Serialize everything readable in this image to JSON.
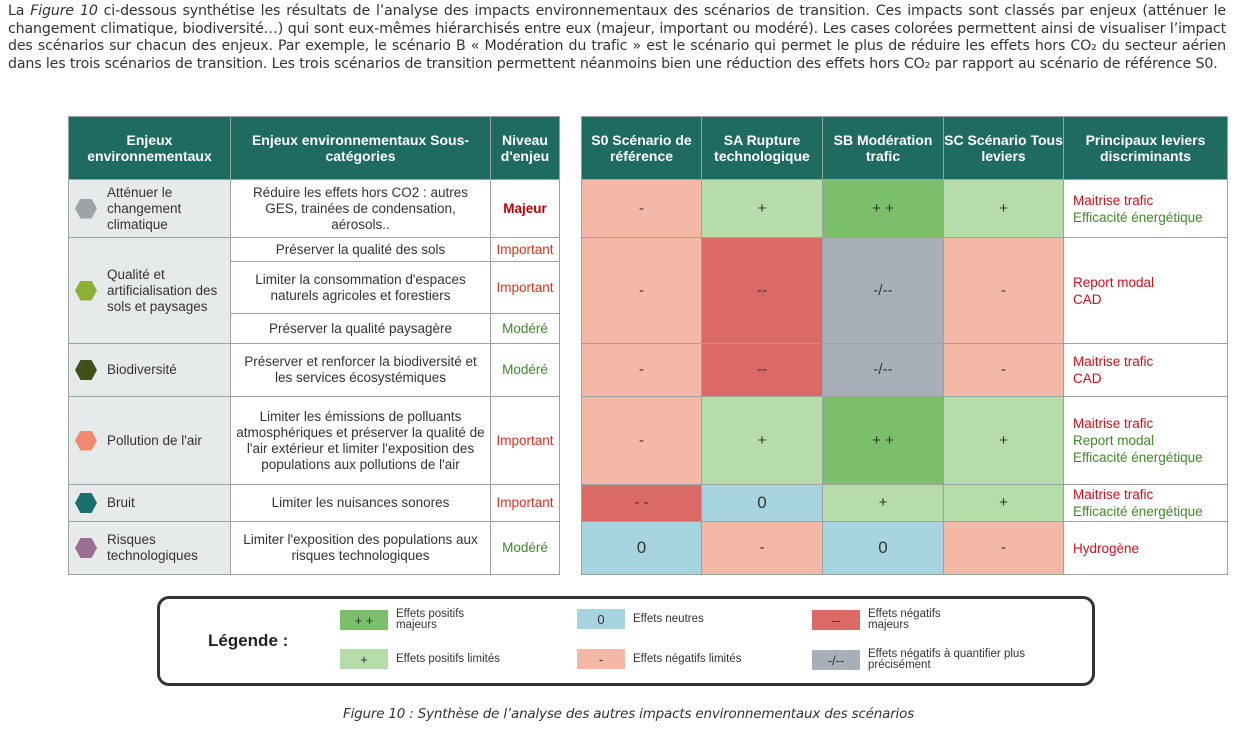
{
  "intro": {
    "before_ref": "La ",
    "ref": "Figure 10",
    "after_ref": " ci-dessous synthétise les résultats de l’analyse des impacts environnementaux des scénarios de transition. Ces impacts sont classés par enjeux (atténuer le changement climatique, biodiversité…) qui sont eux-mêmes hiérarchisés entre eux (majeur, important ou modéré). Les cases colorées permettent ainsi de visualiser l’impact des scénarios sur chacun des enjeux. Par exemple, le scénario B « Modération du trafic » est le scénario qui permet le plus de réduire les effets hors CO₂ du secteur aérien dans les trois scénarios de transition. Les trois scénarios de transition permettent néanmoins bien une réduction des effets hors CO₂ par rapport au scénario de référence S0."
  },
  "headers": {
    "enjeux": "Enjeux environnementaux",
    "sous": "Enjeux environnementaux Sous-catégories",
    "niveau": "Niveau d'enjeu",
    "s0": "S0 Scénario de référence",
    "sa": "SA Rupture technologique",
    "sb": "SB Modération trafic",
    "sc": "SC Scénario Tous leviers",
    "leviers": "Principaux leviers discriminants"
  },
  "enjeux": [
    {
      "label": "Atténuer le changement climatique",
      "color": "#9ea3a8"
    },
    {
      "label": "Qualité et artificialisation des sols et paysages",
      "color": "#8cb033"
    },
    {
      "label": "Biodiversité",
      "color": "#3f5019"
    },
    {
      "label": "Pollution de l'air",
      "color": "#f08a6e"
    },
    {
      "label": "Bruit",
      "color": "#17706e"
    },
    {
      "label": "Risques technologiques",
      "color": "#9a6f93"
    }
  ],
  "sous_categories": [
    {
      "label": "Réduire les effets hors CO2 : autres GES, trainées de condensation, aérosols..",
      "niveau": "Majeur"
    },
    {
      "label": "Préserver la qualité des sols",
      "niveau": "Important"
    },
    {
      "label": "Limiter la consommation d'espaces naturels agricoles et forestiers",
      "niveau": "Important"
    },
    {
      "label": "Préserver la qualité paysagère",
      "niveau": "Modéré"
    },
    {
      "label": "Préserver et renforcer la biodiversité et les services écosystémiques",
      "niveau": "Modéré"
    },
    {
      "label": "Limiter les émissions de polluants atmosphériques et préserver la qualité de l'air extérieur et limiter l'exposition des populations aux pollutions de l'air",
      "niveau": "Important"
    },
    {
      "label": "Limiter les nuisances sonores",
      "niveau": "Important"
    },
    {
      "label": "Limiter l'exposition des populations aux risques technologiques",
      "niveau": "Modéré"
    }
  ],
  "scenarios": [
    {
      "s0": "-",
      "sa": "+",
      "sb": "+ +",
      "sc": "+"
    },
    {
      "s0": "-",
      "sa": "--",
      "sb": "-/--",
      "sc": "-"
    },
    {
      "s0": "-",
      "sa": "--",
      "sb": "-/--",
      "sc": "-"
    },
    {
      "s0": "-",
      "sa": "+",
      "sb": "+ +",
      "sc": "+"
    },
    {
      "s0": "- -",
      "sa": "0",
      "sb": "+",
      "sc": "+"
    },
    {
      "s0": "0",
      "sa": "-",
      "sb": "0",
      "sc": "-"
    }
  ],
  "leviers": [
    [
      "Maitrise trafic",
      "Efficacité énergétique"
    ],
    [
      "Report modal",
      "CAD"
    ],
    [
      "Maitrise trafic",
      "CAD"
    ],
    [
      "Maitrise trafic",
      "Report modal",
      "Efficacité énergétique"
    ],
    [
      "Maitrise trafic",
      "Efficacité énergétique"
    ],
    [
      "Hydrogène"
    ]
  ],
  "legend": {
    "title": "Légende :",
    "pp": {
      "symbol": "+ +",
      "text": "Effets positifs majeurs"
    },
    "p": {
      "symbol": "+",
      "text": "Effets positifs limités"
    },
    "zero": {
      "symbol": "0",
      "text": "Effets neutres"
    },
    "m": {
      "symbol": "-",
      "text": "Effets négatifs limités"
    },
    "mm": {
      "symbol": "--",
      "text": "Effets négatifs majeurs"
    },
    "q": {
      "symbol": "-/--",
      "text": "Effets négatifs à quantifier plus précisément"
    }
  },
  "colors": {
    "header": "#1f6b62",
    "positif_majeur": "#7cbf6a",
    "positif_limite": "#b6dcaa",
    "neutre": "#a8d4e0",
    "negatif_limite": "#f4b8a6",
    "negatif_majeur": "#db6a66",
    "a_quantifier": "#a9afb8"
  },
  "caption": "Figure 10 : Synthèse de l’analyse des autres impacts environnementaux des scénarios"
}
